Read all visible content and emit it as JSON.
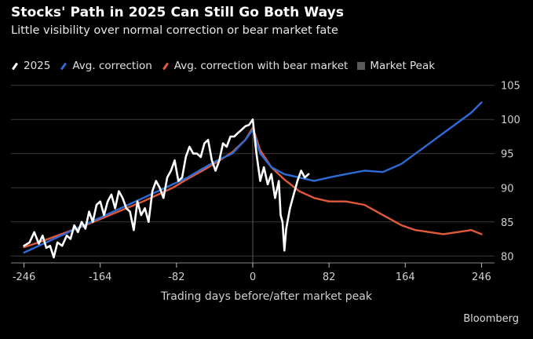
{
  "chart_data": {
    "type": "line",
    "title": "Stocks' Path in 2025 Can Still Go Both Ways",
    "subtitle": "Little visibility over normal correction or bear market fate",
    "xlabel": "Trading days before/after market peak",
    "ylabel": "",
    "xlim": [
      -260,
      260
    ],
    "ylim": [
      79,
      106
    ],
    "x_ticks": [
      -246,
      -164,
      -82,
      0,
      82,
      164,
      246
    ],
    "y_ticks": [
      80,
      85,
      90,
      95,
      100,
      105
    ],
    "y_axis_side": "right",
    "grid": "horizontal",
    "legend_position": "top",
    "market_peak_x": 0,
    "source": "Bloomberg",
    "series": [
      {
        "name": "2025",
        "color": "#ffffff",
        "x": [
          -246,
          -240,
          -235,
          -230,
          -226,
          -222,
          -218,
          -214,
          -210,
          -205,
          -200,
          -196,
          -192,
          -188,
          -184,
          -180,
          -176,
          -172,
          -168,
          -164,
          -160,
          -156,
          -152,
          -148,
          -144,
          -140,
          -136,
          -132,
          -128,
          -124,
          -120,
          -116,
          -112,
          -108,
          -104,
          -100,
          -96,
          -92,
          -88,
          -84,
          -80,
          -76,
          -72,
          -68,
          -64,
          -60,
          -56,
          -52,
          -48,
          -44,
          -40,
          -36,
          -32,
          -28,
          -24,
          -20,
          -16,
          -12,
          -8,
          -4,
          0,
          4,
          8,
          12,
          16,
          20,
          24,
          28,
          30,
          32,
          34,
          36,
          38,
          40,
          44,
          48,
          52,
          56,
          60
        ],
        "values": [
          81.5,
          82,
          83.5,
          81.8,
          83,
          81.2,
          81.5,
          79.8,
          82,
          81.5,
          83,
          82.5,
          84.5,
          83.5,
          85,
          84,
          86.5,
          85,
          87.5,
          88,
          86,
          88,
          89,
          87,
          89.5,
          88.5,
          87,
          86.5,
          83.8,
          88,
          86,
          87,
          85,
          89.5,
          91,
          90,
          88.5,
          91.5,
          92.5,
          94,
          91,
          91.5,
          94.5,
          96,
          95,
          95,
          94.5,
          96.5,
          97,
          94,
          92.5,
          94,
          96.5,
          96,
          97.5,
          97.5,
          98,
          98.5,
          99,
          99.2,
          100,
          95,
          91,
          93,
          90.5,
          92,
          88.5,
          91,
          86,
          85,
          80.8,
          84,
          85.5,
          87,
          89,
          91,
          92.5,
          91.5,
          92
        ]
      },
      {
        "name": "Avg. correction",
        "color": "#2f6bd6",
        "x": [
          -246,
          -230,
          -214,
          -198,
          -182,
          -166,
          -150,
          -134,
          -118,
          -102,
          -86,
          -70,
          -54,
          -38,
          -22,
          -8,
          0,
          8,
          20,
          34,
          50,
          66,
          82,
          100,
          120,
          140,
          160,
          175,
          190,
          205,
          220,
          235,
          246
        ],
        "values": [
          80.5,
          81.5,
          82.5,
          83.5,
          84.5,
          85.5,
          86.5,
          87.5,
          88.5,
          89.5,
          90.5,
          91.5,
          92.8,
          94,
          95,
          97,
          98.5,
          95,
          93,
          92,
          91.5,
          91,
          91.5,
          92,
          92.5,
          92.3,
          93.5,
          95,
          96.5,
          98,
          99.5,
          101,
          102.5
        ]
      },
      {
        "name": "Avg. correction with bear market",
        "color": "#e05a3a",
        "x": [
          -246,
          -230,
          -214,
          -198,
          -182,
          -166,
          -150,
          -134,
          -118,
          -102,
          -86,
          -70,
          -54,
          -38,
          -22,
          -8,
          0,
          8,
          20,
          34,
          50,
          66,
          82,
          100,
          120,
          140,
          160,
          175,
          190,
          205,
          220,
          235,
          246
        ],
        "values": [
          81.3,
          82,
          82.8,
          83.6,
          84.4,
          85.3,
          86.2,
          87.1,
          88,
          89,
          90,
          91.3,
          92.5,
          93.8,
          95.2,
          97,
          98.8,
          95.5,
          93,
          91.2,
          89.5,
          88.5,
          88,
          88,
          87.5,
          86,
          84.5,
          83.8,
          83.5,
          83.2,
          83.5,
          83.8,
          83.2
        ]
      }
    ]
  },
  "legend": {
    "items": [
      {
        "label": "2025",
        "color": "#ffffff",
        "shape": "slash"
      },
      {
        "label": "Avg. correction",
        "color": "#2f6bd6",
        "shape": "slash"
      },
      {
        "label": "Avg. correction with bear market",
        "color": "#e05a3a",
        "shape": "slash"
      },
      {
        "label": "Market Peak",
        "color": "#5a5a5a",
        "shape": "square"
      }
    ]
  }
}
